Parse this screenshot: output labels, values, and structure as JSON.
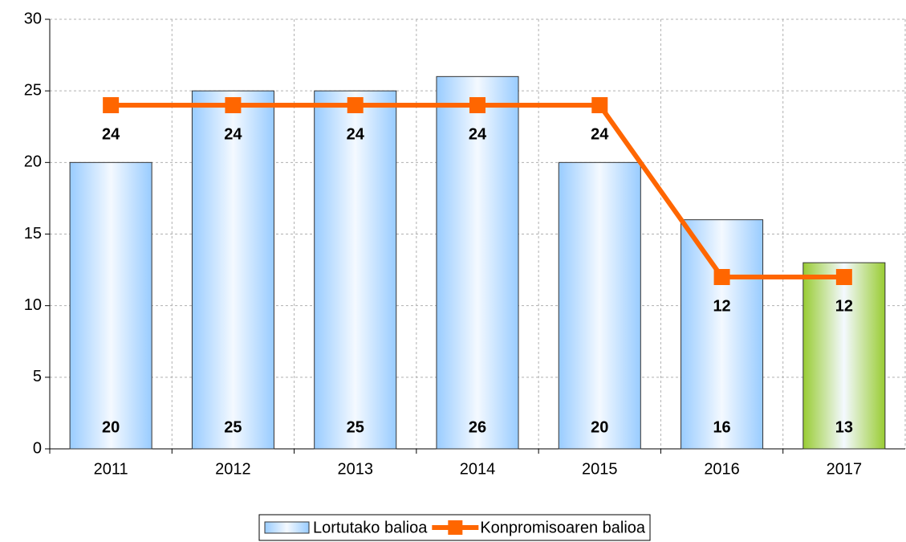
{
  "chart_data": {
    "type": "bar",
    "categories": [
      "2011",
      "2012",
      "2013",
      "2014",
      "2015",
      "2016",
      "2017"
    ],
    "series": [
      {
        "name": "Lortutako balioa",
        "type": "bar",
        "color": "#99ccff",
        "colors": [
          "#99ccff",
          "#99ccff",
          "#99ccff",
          "#99ccff",
          "#99ccff",
          "#99ccff",
          "#99cc33"
        ],
        "label_color": "#333399",
        "values": [
          20,
          25,
          25,
          26,
          20,
          16,
          13
        ]
      },
      {
        "name": "Konpromisoaren balioa",
        "type": "line",
        "color": "#ff6600",
        "label_color": "#000000",
        "values": [
          24,
          24,
          24,
          24,
          24,
          12,
          12
        ]
      }
    ],
    "ylim": [
      0,
      30
    ],
    "yticks": [
      0,
      5,
      10,
      15,
      20,
      25,
      30
    ],
    "grid": true,
    "legend": "bottom"
  }
}
